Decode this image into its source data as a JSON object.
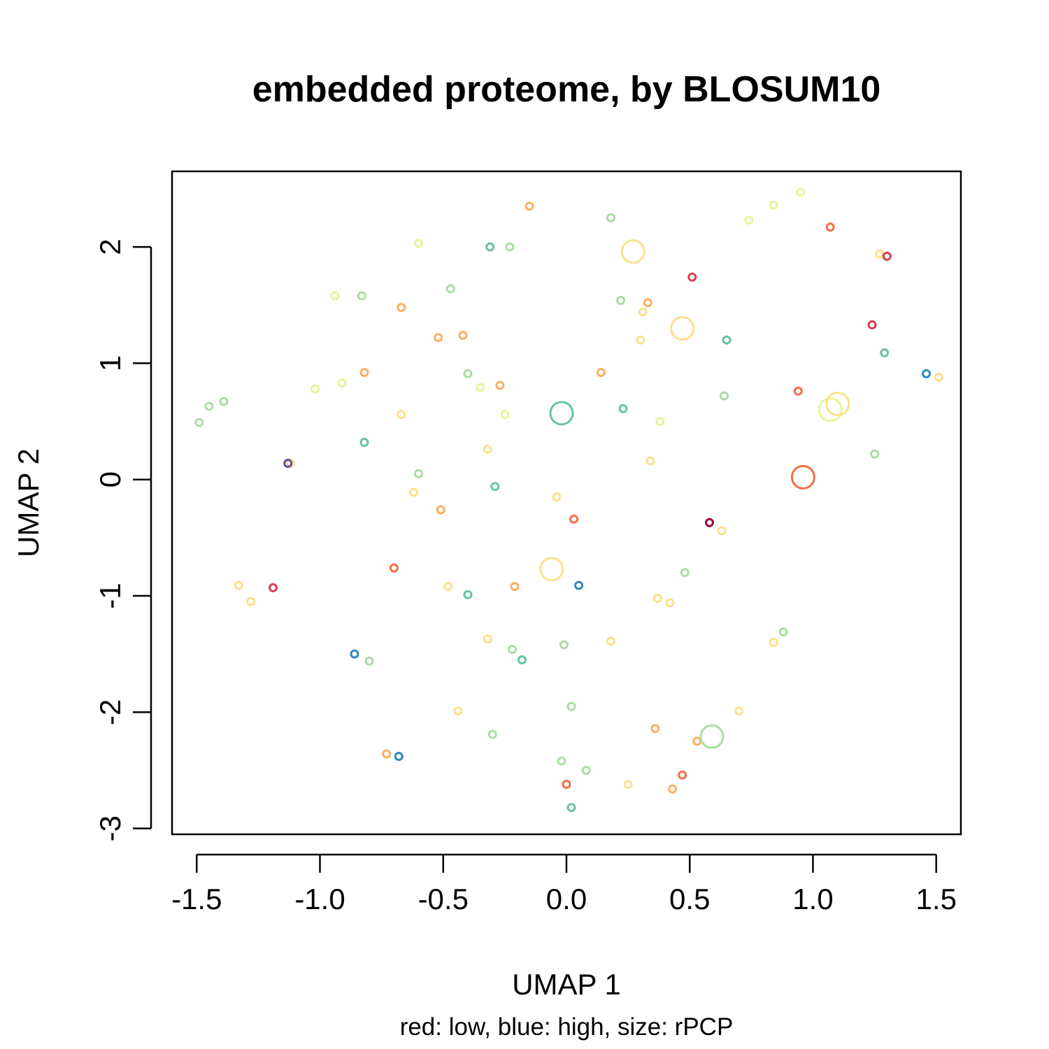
{
  "chart_data": {
    "type": "scatter",
    "title": "embedded proteome, by BLOSUM10",
    "xlabel": "UMAP 1",
    "ylabel": "UMAP 2",
    "caption": "red: low, blue: high, size: rPCP",
    "xlim": [
      -1.6,
      1.6
    ],
    "ylim": [
      -3.05,
      2.65
    ],
    "xticks": [
      -1.5,
      -1.0,
      -0.5,
      0.0,
      0.5,
      1.0,
      1.5
    ],
    "xtick_labels": [
      "-1.5",
      "-1.0",
      "-0.5",
      "0.0",
      "0.5",
      "1.0",
      "1.5"
    ],
    "yticks": [
      -3,
      -2,
      -1,
      0,
      1,
      2
    ],
    "ytick_labels": [
      "-3",
      "-2",
      "-1",
      "0",
      "1",
      "2"
    ],
    "grid": false,
    "legend": "none",
    "palette": {
      "dark-red": "#9e0142",
      "red": "#d53e4f",
      "orange": "#f46d43",
      "light-orange": "#fdae61",
      "yellow": "#fee08b",
      "pale-yellow": "#e6f598",
      "light-green": "#abdda4",
      "green": "#66c2a5",
      "blue": "#3288bd",
      "purple": "#5e4fa2"
    },
    "points": [
      {
        "x": -0.15,
        "y": 2.35,
        "color": "#fdae61",
        "size": 1
      },
      {
        "x": -0.31,
        "y": 2.0,
        "color": "#66c2a5",
        "size": 1
      },
      {
        "x": -0.23,
        "y": 2.0,
        "color": "#abdda4",
        "size": 1
      },
      {
        "x": -0.6,
        "y": 2.03,
        "color": "#e6f598",
        "size": 1
      },
      {
        "x": 0.18,
        "y": 2.25,
        "color": "#abdda4",
        "size": 1
      },
      {
        "x": 0.27,
        "y": 1.96,
        "color": "#fee08b",
        "size": 3
      },
      {
        "x": 0.74,
        "y": 2.23,
        "color": "#e6f598",
        "size": 1
      },
      {
        "x": 0.84,
        "y": 2.36,
        "color": "#e6f598",
        "size": 1
      },
      {
        "x": 0.95,
        "y": 2.47,
        "color": "#e6f598",
        "size": 1
      },
      {
        "x": 1.07,
        "y": 2.17,
        "color": "#f46d43",
        "size": 1
      },
      {
        "x": 1.27,
        "y": 1.94,
        "color": "#fee08b",
        "size": 1
      },
      {
        "x": 1.3,
        "y": 1.92,
        "color": "#d53e4f",
        "size": 1
      },
      {
        "x": 0.51,
        "y": 1.74,
        "color": "#d53e4f",
        "size": 1
      },
      {
        "x": -0.94,
        "y": 1.58,
        "color": "#e6f598",
        "size": 1
      },
      {
        "x": -0.83,
        "y": 1.58,
        "color": "#abdda4",
        "size": 1
      },
      {
        "x": -0.67,
        "y": 1.48,
        "color": "#fdae61",
        "size": 1
      },
      {
        "x": -0.47,
        "y": 1.64,
        "color": "#abdda4",
        "size": 1
      },
      {
        "x": 0.22,
        "y": 1.54,
        "color": "#abdda4",
        "size": 1
      },
      {
        "x": 0.33,
        "y": 1.52,
        "color": "#fdae61",
        "size": 1
      },
      {
        "x": 0.31,
        "y": 1.44,
        "color": "#fee08b",
        "size": 1
      },
      {
        "x": -0.52,
        "y": 1.22,
        "color": "#fdae61",
        "size": 1
      },
      {
        "x": -0.42,
        "y": 1.24,
        "color": "#fdae61",
        "size": 1
      },
      {
        "x": 0.3,
        "y": 1.2,
        "color": "#fee08b",
        "size": 1
      },
      {
        "x": 0.47,
        "y": 1.3,
        "color": "#fee08b",
        "size": 3
      },
      {
        "x": 0.65,
        "y": 1.2,
        "color": "#66c2a5",
        "size": 1
      },
      {
        "x": 1.24,
        "y": 1.33,
        "color": "#d53e4f",
        "size": 1
      },
      {
        "x": 1.29,
        "y": 1.09,
        "color": "#66c2a5",
        "size": 1
      },
      {
        "x": 1.46,
        "y": 0.91,
        "color": "#3288bd",
        "size": 1
      },
      {
        "x": 1.51,
        "y": 0.88,
        "color": "#fee08b",
        "size": 1
      },
      {
        "x": -0.82,
        "y": 0.92,
        "color": "#fdae61",
        "size": 1
      },
      {
        "x": -0.91,
        "y": 0.83,
        "color": "#e6f598",
        "size": 1
      },
      {
        "x": -1.02,
        "y": 0.78,
        "color": "#e6f598",
        "size": 1
      },
      {
        "x": -0.4,
        "y": 0.91,
        "color": "#abdda4",
        "size": 1
      },
      {
        "x": -0.35,
        "y": 0.79,
        "color": "#e6f598",
        "size": 1
      },
      {
        "x": -0.27,
        "y": 0.81,
        "color": "#fdae61",
        "size": 1
      },
      {
        "x": 0.14,
        "y": 0.92,
        "color": "#fdae61",
        "size": 1
      },
      {
        "x": 0.94,
        "y": 0.76,
        "color": "#f46d43",
        "size": 1
      },
      {
        "x": 1.07,
        "y": 0.6,
        "color": "#e6f598",
        "size": 3
      },
      {
        "x": 1.1,
        "y": 0.65,
        "color": "#fee08b",
        "size": 3
      },
      {
        "x": -1.39,
        "y": 0.67,
        "color": "#abdda4",
        "size": 1
      },
      {
        "x": -1.45,
        "y": 0.63,
        "color": "#abdda4",
        "size": 1
      },
      {
        "x": -1.49,
        "y": 0.49,
        "color": "#abdda4",
        "size": 1
      },
      {
        "x": -0.67,
        "y": 0.56,
        "color": "#fee08b",
        "size": 1
      },
      {
        "x": -0.25,
        "y": 0.56,
        "color": "#e6f598",
        "size": 1
      },
      {
        "x": -0.02,
        "y": 0.57,
        "color": "#66c2a5",
        "size": 3
      },
      {
        "x": 0.23,
        "y": 0.61,
        "color": "#66c2a5",
        "size": 1
      },
      {
        "x": 0.38,
        "y": 0.5,
        "color": "#e6f598",
        "size": 1
      },
      {
        "x": 0.64,
        "y": 0.72,
        "color": "#abdda4",
        "size": 1
      },
      {
        "x": -0.82,
        "y": 0.32,
        "color": "#66c2a5",
        "size": 1
      },
      {
        "x": -0.32,
        "y": 0.26,
        "color": "#fee08b",
        "size": 1
      },
      {
        "x": -1.12,
        "y": 0.14,
        "color": "#fee08b",
        "size": 1
      },
      {
        "x": -1.13,
        "y": 0.14,
        "color": "#5e4fa2",
        "size": 1
      },
      {
        "x": 0.34,
        "y": 0.16,
        "color": "#fee08b",
        "size": 1
      },
      {
        "x": 1.25,
        "y": 0.22,
        "color": "#abdda4",
        "size": 1
      },
      {
        "x": 0.96,
        "y": 0.02,
        "color": "#f46d43",
        "size": 3
      },
      {
        "x": -0.6,
        "y": 0.05,
        "color": "#abdda4",
        "size": 1
      },
      {
        "x": -0.62,
        "y": -0.11,
        "color": "#fee08b",
        "size": 1
      },
      {
        "x": -0.29,
        "y": -0.06,
        "color": "#66c2a5",
        "size": 1
      },
      {
        "x": -0.04,
        "y": -0.15,
        "color": "#fee08b",
        "size": 1
      },
      {
        "x": -0.51,
        "y": -0.26,
        "color": "#fdae61",
        "size": 1
      },
      {
        "x": 0.03,
        "y": -0.34,
        "color": "#f46d43",
        "size": 1
      },
      {
        "x": 0.58,
        "y": -0.37,
        "color": "#9e0142",
        "size": 1
      },
      {
        "x": 0.63,
        "y": -0.44,
        "color": "#fee08b",
        "size": 1
      },
      {
        "x": -0.7,
        "y": -0.76,
        "color": "#f46d43",
        "size": 1
      },
      {
        "x": -0.06,
        "y": -0.77,
        "color": "#fee08b",
        "size": 3
      },
      {
        "x": 0.48,
        "y": -0.8,
        "color": "#abdda4",
        "size": 1
      },
      {
        "x": -1.33,
        "y": -0.91,
        "color": "#fee08b",
        "size": 1
      },
      {
        "x": -1.28,
        "y": -1.05,
        "color": "#fee08b",
        "size": 1
      },
      {
        "x": -1.19,
        "y": -0.93,
        "color": "#d53e4f",
        "size": 1
      },
      {
        "x": -0.48,
        "y": -0.92,
        "color": "#fee08b",
        "size": 1
      },
      {
        "x": -0.4,
        "y": -0.99,
        "color": "#66c2a5",
        "size": 1
      },
      {
        "x": -0.21,
        "y": -0.92,
        "color": "#fdae61",
        "size": 1
      },
      {
        "x": 0.05,
        "y": -0.91,
        "color": "#3288bd",
        "size": 1
      },
      {
        "x": 0.37,
        "y": -1.02,
        "color": "#fee08b",
        "size": 1
      },
      {
        "x": 0.42,
        "y": -1.06,
        "color": "#fee08b",
        "size": 1
      },
      {
        "x": 0.88,
        "y": -1.31,
        "color": "#abdda4",
        "size": 1
      },
      {
        "x": 0.84,
        "y": -1.4,
        "color": "#fee08b",
        "size": 1
      },
      {
        "x": -0.32,
        "y": -1.37,
        "color": "#fee08b",
        "size": 1
      },
      {
        "x": -0.22,
        "y": -1.46,
        "color": "#abdda4",
        "size": 1
      },
      {
        "x": -0.18,
        "y": -1.55,
        "color": "#66c2a5",
        "size": 1
      },
      {
        "x": -0.01,
        "y": -1.42,
        "color": "#abdda4",
        "size": 1
      },
      {
        "x": 0.18,
        "y": -1.39,
        "color": "#fee08b",
        "size": 1
      },
      {
        "x": -0.86,
        "y": -1.5,
        "color": "#3288bd",
        "size": 1
      },
      {
        "x": -0.8,
        "y": -1.56,
        "color": "#abdda4",
        "size": 1
      },
      {
        "x": -0.44,
        "y": -1.99,
        "color": "#fee08b",
        "size": 1
      },
      {
        "x": 0.02,
        "y": -1.95,
        "color": "#abdda4",
        "size": 1
      },
      {
        "x": 0.7,
        "y": -1.99,
        "color": "#fee08b",
        "size": 1
      },
      {
        "x": -0.3,
        "y": -2.19,
        "color": "#abdda4",
        "size": 1
      },
      {
        "x": 0.36,
        "y": -2.14,
        "color": "#fdae61",
        "size": 1
      },
      {
        "x": 0.53,
        "y": -2.25,
        "color": "#fdae61",
        "size": 1
      },
      {
        "x": 0.59,
        "y": -2.21,
        "color": "#abdda4",
        "size": 3
      },
      {
        "x": -0.73,
        "y": -2.36,
        "color": "#fdae61",
        "size": 1
      },
      {
        "x": -0.68,
        "y": -2.38,
        "color": "#3288bd",
        "size": 1
      },
      {
        "x": -0.02,
        "y": -2.42,
        "color": "#abdda4",
        "size": 1
      },
      {
        "x": 0.08,
        "y": -2.5,
        "color": "#abdda4",
        "size": 1
      },
      {
        "x": 0.0,
        "y": -2.62,
        "color": "#f46d43",
        "size": 1
      },
      {
        "x": 0.25,
        "y": -2.62,
        "color": "#fee08b",
        "size": 1
      },
      {
        "x": 0.43,
        "y": -2.66,
        "color": "#fdae61",
        "size": 1
      },
      {
        "x": 0.47,
        "y": -2.54,
        "color": "#f46d43",
        "size": 1
      },
      {
        "x": 0.02,
        "y": -2.82,
        "color": "#66c2a5",
        "size": 1
      }
    ]
  }
}
